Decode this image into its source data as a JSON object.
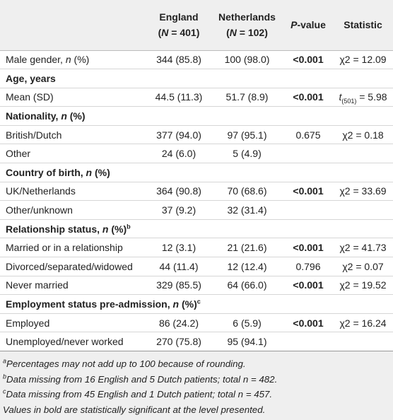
{
  "table": {
    "columns": [
      {
        "title": "England",
        "subtitle": "(N = 401)"
      },
      {
        "title": "Netherlands",
        "subtitle": "(N = 102)"
      },
      {
        "title": "P-value"
      },
      {
        "title": "Statistic"
      }
    ],
    "rows": [
      {
        "label": "Male gender, n (%)",
        "cells": [
          "344 (85.8)",
          "100 (98.0)",
          "<0.001",
          "χ2 = 12.09"
        ],
        "bold_p": true
      },
      {
        "section": "Age, years"
      },
      {
        "label": "Mean (SD)",
        "cells": [
          "44.5 (11.3)",
          "51.7 (8.9)",
          "<0.001",
          "t(501) = 5.98"
        ],
        "bold_p": true
      },
      {
        "section": "Nationality, n (%)"
      },
      {
        "label": "British/Dutch",
        "cells": [
          "377 (94.0)",
          "97 (95.1)",
          "0.675",
          "χ2 = 0.18"
        ],
        "bold_p": false
      },
      {
        "label": "Other",
        "cells": [
          "24 (6.0)",
          "5 (4.9)"
        ]
      },
      {
        "section": "Country of birth, n (%)"
      },
      {
        "label": "UK/Netherlands",
        "cells": [
          "364 (90.8)",
          "70 (68.6)",
          "<0.001",
          "χ2 = 33.69"
        ],
        "bold_p": true
      },
      {
        "label": "Other/unknown",
        "cells": [
          "37 (9.2)",
          "32 (31.4)"
        ]
      },
      {
        "section": "Relationship status, n (%)",
        "note": "b"
      },
      {
        "label": "Married or in a relationship",
        "cells": [
          "12 (3.1)",
          "21 (21.6)",
          "<0.001",
          "χ2 = 41.73"
        ],
        "bold_p": true
      },
      {
        "label": "Divorced/separated/widowed",
        "cells": [
          "44 (11.4)",
          "12 (12.4)",
          "0.796",
          "χ2 = 0.07"
        ],
        "bold_p": false
      },
      {
        "label": "Never married",
        "cells": [
          "329 (85.5)",
          "64 (66.0)",
          "<0.001",
          "χ2 = 19.52"
        ],
        "bold_p": true
      },
      {
        "section": "Employment status pre-admission, n (%)",
        "note": "c"
      },
      {
        "label": "Employed",
        "cells": [
          "86 (24.2)",
          "6 (5.9)",
          "<0.001",
          "χ2 = 16.24"
        ],
        "bold_p": true
      },
      {
        "label": "Unemployed/never worked",
        "cells": [
          "270 (75.8)",
          "95 (94.1)"
        ]
      }
    ],
    "footnotes": [
      {
        "mark": "a",
        "text": "Percentages may not add up to 100 because of rounding."
      },
      {
        "mark": "b",
        "text": "Data missing from 16 English and 5 Dutch patients; total n = 482."
      },
      {
        "mark": "c",
        "text": "Data missing from 45 English and 1 Dutch patient; total n = 457."
      },
      {
        "text": "Values in bold are statistically significant at the level presented."
      }
    ]
  }
}
